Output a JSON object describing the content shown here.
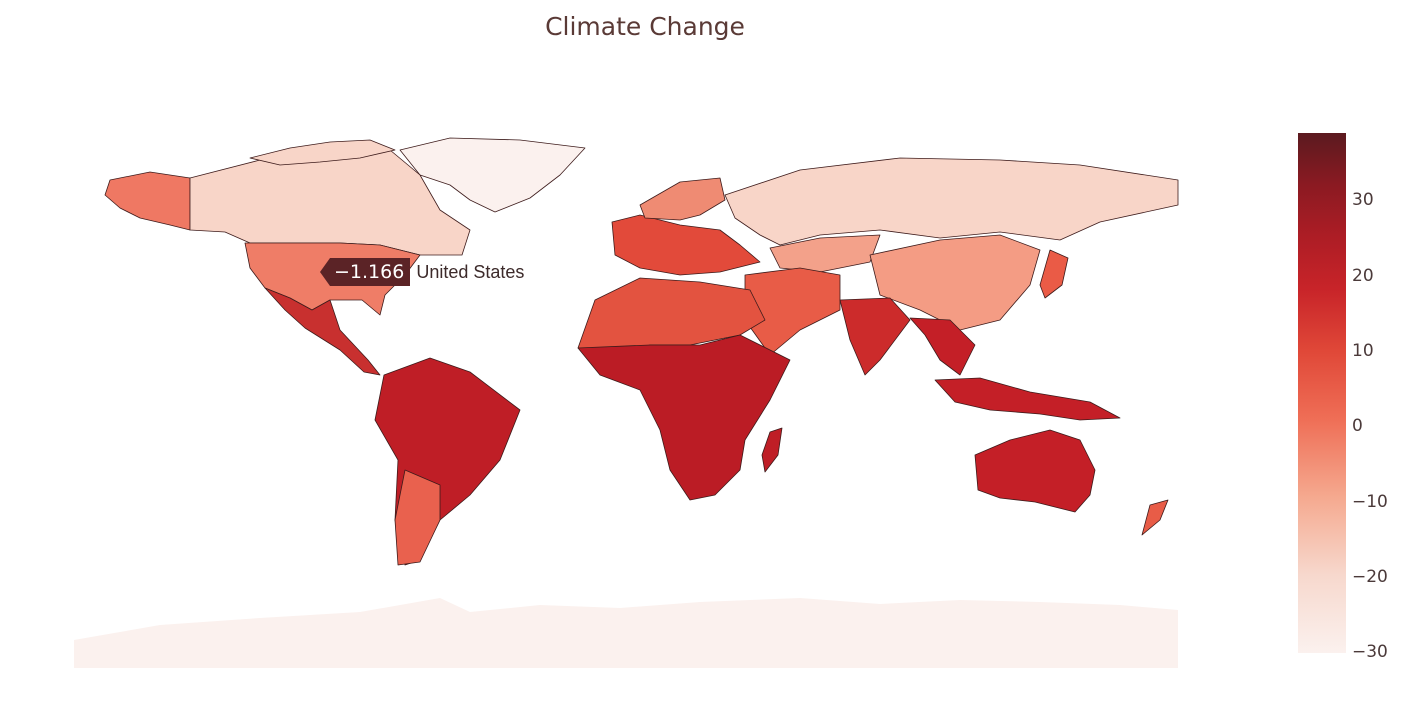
{
  "title": "Climate Change",
  "colorbar": {
    "range": [
      -30,
      38
    ],
    "ticks": [
      "30",
      "20",
      "10",
      "0",
      "−10",
      "−20",
      "−30"
    ],
    "colors": [
      "#fbf1ee",
      "#f7d8cd",
      "#f5a98f",
      "#ef6e56",
      "#e04838",
      "#c82429",
      "#ad1d25",
      "#8b1a22",
      "#5b1a1f"
    ]
  },
  "hover": {
    "value": "−1.166",
    "name": "United States"
  },
  "icons": {
    "tooltip_arrow": "arrow-left-icon"
  }
}
